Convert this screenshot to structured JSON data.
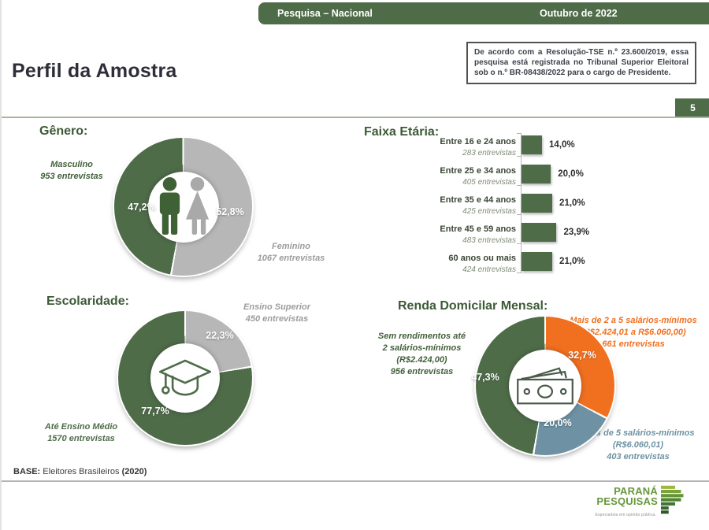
{
  "header": {
    "tab_label": "Pesquisa – Nacional",
    "date_label": "Outubro de 2022"
  },
  "tse_note": "De acordo com a Resolução-TSE n.º 23.600/2019, essa pesquisa está registrada no Tribunal Superior Eleitoral sob o n.º BR-08438/2022 para o cargo de Presidente.",
  "page_title": "Perfil da Amostra",
  "page_number": "5",
  "footer": {
    "base_label": "BASE:",
    "base_text": "Eleitores Brasileiros",
    "base_year": "(2020)"
  },
  "logo": {
    "name_line1": "PARANÁ",
    "name_line2": "PESQUISAS",
    "tagline": "Especialista em opinião pública."
  },
  "colors": {
    "brand_green": "#4f6c49",
    "heading_green": "#3c5a36",
    "slice_gray": "#b7b7b7",
    "slice_orange": "#f07020",
    "slice_blue": "#6e92a4"
  },
  "chart_data": [
    {
      "id": "genero",
      "type": "pie",
      "title": "Gênero:",
      "center_icon": "male-female-icon",
      "slices": [
        {
          "label": "Feminino",
          "entrevistas": 1067,
          "value": 52.8,
          "pct_label": "52,8%",
          "label_text": "Feminino\n1067 entrevistas",
          "color": "#b7b7b7"
        },
        {
          "label": "Masculino",
          "entrevistas": 953,
          "value": 47.2,
          "pct_label": "47,2%",
          "label_text": "Masculino\n953 entrevistas",
          "color": "#4f6c49"
        }
      ]
    },
    {
      "id": "faixa-etaria",
      "type": "bar",
      "title": "Faixa Etária:",
      "bar_color": "#4f6c49",
      "value_unit": "%",
      "rows": [
        {
          "label": "Entre 16 e 24 anos",
          "sublabel": "283 entrevistas",
          "value": 14.0,
          "value_label": "14,0%"
        },
        {
          "label": "Entre 25 e 34 anos",
          "sublabel": "405 entrevistas",
          "value": 20.0,
          "value_label": "20,0%"
        },
        {
          "label": "Entre 35 e 44 anos",
          "sublabel": "425 entrevistas",
          "value": 21.0,
          "value_label": "21,0%"
        },
        {
          "label": "Entre 45 e 59 anos",
          "sublabel": "483 entrevistas",
          "value": 23.9,
          "value_label": "23,9%"
        },
        {
          "label": "60 anos ou mais",
          "sublabel": "424 entrevistas",
          "value": 21.0,
          "value_label": "21,0%"
        }
      ]
    },
    {
      "id": "escolaridade",
      "type": "pie",
      "title": "Escolaridade:",
      "center_icon": "graduation-cap-icon",
      "slices": [
        {
          "label": "Ensino Superior",
          "entrevistas": 450,
          "value": 22.3,
          "pct_label": "22,3%",
          "label_text": "Ensino Superior\n450 entrevistas",
          "color": "#b7b7b7"
        },
        {
          "label": "Até Ensino Médio",
          "entrevistas": 1570,
          "value": 77.7,
          "pct_label": "77,7%",
          "label_text": "Até Ensino Médio\n1570 entrevistas",
          "color": "#4f6c49"
        }
      ]
    },
    {
      "id": "renda",
      "type": "pie",
      "title": "Renda Domicilar Mensal:",
      "center_icon": "banknote-icon",
      "slices": [
        {
          "label": "Mais de 2 a 5 salários-mínimos",
          "range": "(R$2.424,01 a R$6.060,00)",
          "entrevistas": 661,
          "value": 32.7,
          "pct_label": "32,7%",
          "label_text": "Mais de 2 a 5 salários-mínimos\n(R$2.424,01 a R$6.060,00)\n661 entrevistas",
          "color": "#f07020"
        },
        {
          "label": "Mais de 5 salários-mínimos",
          "range": "(R$6.060,01)",
          "entrevistas": 403,
          "value": 20.0,
          "pct_label": "20,0%",
          "label_text": "Mais de 5 salários-mínimos\n(R$6.060,01)\n403 entrevistas",
          "color": "#6e92a4"
        },
        {
          "label": "Sem rendimentos até 2 salários-mínimos",
          "range": "(R$2.424,00)",
          "entrevistas": 956,
          "value": 47.3,
          "pct_label": "47,3%",
          "label_text": "Sem rendimentos até\n2 salários-mínimos\n(R$2.424,00)\n956 entrevistas",
          "color": "#4f6c49"
        }
      ]
    }
  ]
}
